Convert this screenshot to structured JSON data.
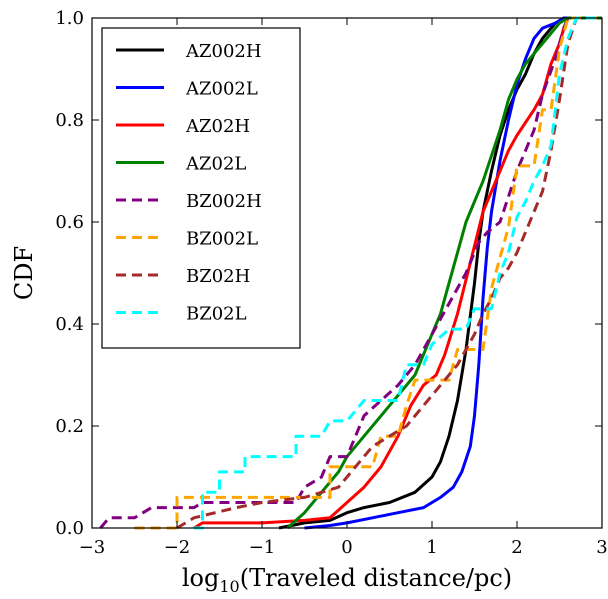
{
  "chart_data": {
    "type": "line",
    "xlabel_prefix": "log",
    "xlabel_sub": "10",
    "xlabel_rest": "(Traveled distance/pc)",
    "ylabel": "CDF",
    "xlim": [
      -3,
      3
    ],
    "ylim": [
      0,
      1
    ],
    "xticks": [
      -3,
      -2,
      -1,
      0,
      1,
      2,
      3
    ],
    "xtick_labels": [
      "−3",
      "−2",
      "−1",
      "0",
      "1",
      "2",
      "3"
    ],
    "yticks": [
      0,
      0.2,
      0.4,
      0.6,
      0.8,
      1.0
    ],
    "ytick_labels": [
      "0.0",
      "0.2",
      "0.4",
      "0.6",
      "0.8",
      "1.0"
    ],
    "grid": false,
    "legend_position": "top-left",
    "series": [
      {
        "name": "AZ002H",
        "color": "#000000",
        "dash": "solid",
        "points": [
          [
            -0.8,
            0
          ],
          [
            -0.5,
            0.01
          ],
          [
            -0.2,
            0.015
          ],
          [
            0,
            0.03
          ],
          [
            0.2,
            0.04
          ],
          [
            0.5,
            0.05
          ],
          [
            0.8,
            0.07
          ],
          [
            1.0,
            0.1
          ],
          [
            1.1,
            0.13
          ],
          [
            1.2,
            0.18
          ],
          [
            1.3,
            0.25
          ],
          [
            1.4,
            0.35
          ],
          [
            1.5,
            0.48
          ],
          [
            1.55,
            0.56
          ],
          [
            1.6,
            0.62
          ],
          [
            1.7,
            0.7
          ],
          [
            1.8,
            0.77
          ],
          [
            1.9,
            0.82
          ],
          [
            2.0,
            0.86
          ],
          [
            2.1,
            0.89
          ],
          [
            2.2,
            0.93
          ],
          [
            2.3,
            0.96
          ],
          [
            2.45,
            0.99
          ],
          [
            2.55,
            1.0
          ],
          [
            3.0,
            1.0
          ]
        ]
      },
      {
        "name": "AZ002L",
        "color": "#0000ff",
        "dash": "solid",
        "points": [
          [
            -0.5,
            0
          ],
          [
            -0.2,
            0.005
          ],
          [
            0,
            0.01
          ],
          [
            0.3,
            0.02
          ],
          [
            0.6,
            0.03
          ],
          [
            0.9,
            0.04
          ],
          [
            1.1,
            0.06
          ],
          [
            1.25,
            0.08
          ],
          [
            1.35,
            0.11
          ],
          [
            1.45,
            0.16
          ],
          [
            1.5,
            0.22
          ],
          [
            1.55,
            0.32
          ],
          [
            1.6,
            0.45
          ],
          [
            1.65,
            0.55
          ],
          [
            1.7,
            0.62
          ],
          [
            1.8,
            0.72
          ],
          [
            1.9,
            0.8
          ],
          [
            2.0,
            0.87
          ],
          [
            2.1,
            0.92
          ],
          [
            2.2,
            0.96
          ],
          [
            2.3,
            0.98
          ],
          [
            2.45,
            0.99
          ],
          [
            2.55,
            1.0
          ],
          [
            3.0,
            1.0
          ]
        ]
      },
      {
        "name": "AZ02H",
        "color": "#ff0000",
        "dash": "solid",
        "points": [
          [
            -1.8,
            0
          ],
          [
            -1.7,
            0.01
          ],
          [
            -1.0,
            0.01
          ],
          [
            -0.5,
            0.015
          ],
          [
            -0.2,
            0.02
          ],
          [
            0,
            0.05
          ],
          [
            0.2,
            0.08
          ],
          [
            0.4,
            0.12
          ],
          [
            0.6,
            0.18
          ],
          [
            0.75,
            0.24
          ],
          [
            0.9,
            0.28
          ],
          [
            1.05,
            0.3
          ],
          [
            1.15,
            0.34
          ],
          [
            1.3,
            0.42
          ],
          [
            1.45,
            0.52
          ],
          [
            1.6,
            0.62
          ],
          [
            1.7,
            0.66
          ],
          [
            1.8,
            0.7
          ],
          [
            1.9,
            0.74
          ],
          [
            2.0,
            0.77
          ],
          [
            2.2,
            0.82
          ],
          [
            2.3,
            0.85
          ],
          [
            2.4,
            0.91
          ],
          [
            2.5,
            0.95
          ],
          [
            2.55,
            0.98
          ],
          [
            2.6,
            1.0
          ],
          [
            3.0,
            1.0
          ]
        ]
      },
      {
        "name": "AZ02L",
        "color": "#008000",
        "dash": "solid",
        "points": [
          [
            -0.7,
            0
          ],
          [
            -0.5,
            0.03
          ],
          [
            -0.3,
            0.07
          ],
          [
            -0.1,
            0.11
          ],
          [
            0,
            0.14
          ],
          [
            0.2,
            0.18
          ],
          [
            0.4,
            0.22
          ],
          [
            0.6,
            0.26
          ],
          [
            0.8,
            0.3
          ],
          [
            0.9,
            0.34
          ],
          [
            1.0,
            0.38
          ],
          [
            1.1,
            0.42
          ],
          [
            1.2,
            0.48
          ],
          [
            1.3,
            0.54
          ],
          [
            1.4,
            0.6
          ],
          [
            1.5,
            0.64
          ],
          [
            1.6,
            0.68
          ],
          [
            1.7,
            0.73
          ],
          [
            1.8,
            0.78
          ],
          [
            1.9,
            0.84
          ],
          [
            2.0,
            0.88
          ],
          [
            2.1,
            0.91
          ],
          [
            2.2,
            0.93
          ],
          [
            2.3,
            0.95
          ],
          [
            2.4,
            0.97
          ],
          [
            2.5,
            0.99
          ],
          [
            2.6,
            1.0
          ],
          [
            3.0,
            1.0
          ]
        ]
      },
      {
        "name": "BZ002H",
        "color": "#800080",
        "dash": "dashed",
        "points": [
          [
            -2.9,
            0
          ],
          [
            -2.8,
            0.02
          ],
          [
            -2.5,
            0.02
          ],
          [
            -2.3,
            0.04
          ],
          [
            -1.8,
            0.04
          ],
          [
            -1.7,
            0.05
          ],
          [
            -0.6,
            0.05
          ],
          [
            -0.5,
            0.08
          ],
          [
            -0.3,
            0.1
          ],
          [
            -0.2,
            0.14
          ],
          [
            0,
            0.14
          ],
          [
            0.1,
            0.18
          ],
          [
            0.2,
            0.22
          ],
          [
            0.4,
            0.25
          ],
          [
            0.6,
            0.28
          ],
          [
            0.7,
            0.3
          ],
          [
            0.8,
            0.32
          ],
          [
            1.0,
            0.38
          ],
          [
            1.2,
            0.44
          ],
          [
            1.4,
            0.5
          ],
          [
            1.55,
            0.56
          ],
          [
            1.65,
            0.58
          ],
          [
            1.8,
            0.6
          ],
          [
            2.0,
            0.7
          ],
          [
            2.2,
            0.78
          ],
          [
            2.3,
            0.85
          ],
          [
            2.45,
            0.92
          ],
          [
            2.55,
            0.98
          ],
          [
            2.6,
            1.0
          ],
          [
            3.0,
            1.0
          ]
        ]
      },
      {
        "name": "BZ002L",
        "color": "#ffa500",
        "dash": "dashed",
        "points": [
          [
            -2.5,
            0
          ],
          [
            -2.0,
            0
          ],
          [
            -2.0,
            0.06
          ],
          [
            -0.2,
            0.06
          ],
          [
            -0.2,
            0.12
          ],
          [
            0.3,
            0.12
          ],
          [
            0.4,
            0.18
          ],
          [
            0.6,
            0.18
          ],
          [
            0.7,
            0.24
          ],
          [
            0.8,
            0.29
          ],
          [
            1.2,
            0.29
          ],
          [
            1.3,
            0.35
          ],
          [
            1.6,
            0.35
          ],
          [
            1.7,
            0.47
          ],
          [
            1.8,
            0.53
          ],
          [
            1.9,
            0.59
          ],
          [
            2.0,
            0.71
          ],
          [
            2.2,
            0.71
          ],
          [
            2.3,
            0.82
          ],
          [
            2.4,
            0.82
          ],
          [
            2.45,
            0.88
          ],
          [
            2.5,
            0.94
          ],
          [
            2.6,
            1.0
          ],
          [
            3.0,
            1.0
          ]
        ]
      },
      {
        "name": "BZ02H",
        "color": "#a52a2a",
        "dash": "dashed",
        "points": [
          [
            -2.0,
            0
          ],
          [
            -1.8,
            0.02
          ],
          [
            -1.3,
            0.04
          ],
          [
            -1.0,
            0.05
          ],
          [
            -0.5,
            0.06
          ],
          [
            -0.1,
            0.08
          ],
          [
            0.1,
            0.12
          ],
          [
            0.3,
            0.16
          ],
          [
            0.5,
            0.18
          ],
          [
            0.7,
            0.2
          ],
          [
            0.9,
            0.24
          ],
          [
            1.1,
            0.28
          ],
          [
            1.3,
            0.32
          ],
          [
            1.5,
            0.38
          ],
          [
            1.6,
            0.42
          ],
          [
            1.7,
            0.45
          ],
          [
            1.8,
            0.49
          ],
          [
            1.9,
            0.51
          ],
          [
            2.0,
            0.54
          ],
          [
            2.1,
            0.58
          ],
          [
            2.2,
            0.62
          ],
          [
            2.3,
            0.66
          ],
          [
            2.4,
            0.74
          ],
          [
            2.5,
            0.84
          ],
          [
            2.6,
            0.95
          ],
          [
            2.7,
            1.0
          ],
          [
            3.0,
            1.0
          ]
        ]
      },
      {
        "name": "BZ02L",
        "color": "#00ffff",
        "dash": "dashed",
        "points": [
          [
            -1.8,
            0
          ],
          [
            -1.7,
            0
          ],
          [
            -1.7,
            0.07
          ],
          [
            -1.5,
            0.07
          ],
          [
            -1.5,
            0.11
          ],
          [
            -1.2,
            0.11
          ],
          [
            -1.2,
            0.14
          ],
          [
            -0.6,
            0.14
          ],
          [
            -0.6,
            0.18
          ],
          [
            -0.3,
            0.18
          ],
          [
            -0.2,
            0.21
          ],
          [
            0,
            0.21
          ],
          [
            0.2,
            0.25
          ],
          [
            0.6,
            0.25
          ],
          [
            0.7,
            0.32
          ],
          [
            0.9,
            0.32
          ],
          [
            1.0,
            0.36
          ],
          [
            1.2,
            0.39
          ],
          [
            1.4,
            0.39
          ],
          [
            1.5,
            0.43
          ],
          [
            1.7,
            0.43
          ],
          [
            1.8,
            0.5
          ],
          [
            1.9,
            0.54
          ],
          [
            2.0,
            0.61
          ],
          [
            2.1,
            0.64
          ],
          [
            2.2,
            0.68
          ],
          [
            2.3,
            0.71
          ],
          [
            2.4,
            0.75
          ],
          [
            2.5,
            0.89
          ],
          [
            2.6,
            0.96
          ],
          [
            2.7,
            1.0
          ],
          [
            3.0,
            1.0
          ]
        ]
      }
    ]
  }
}
